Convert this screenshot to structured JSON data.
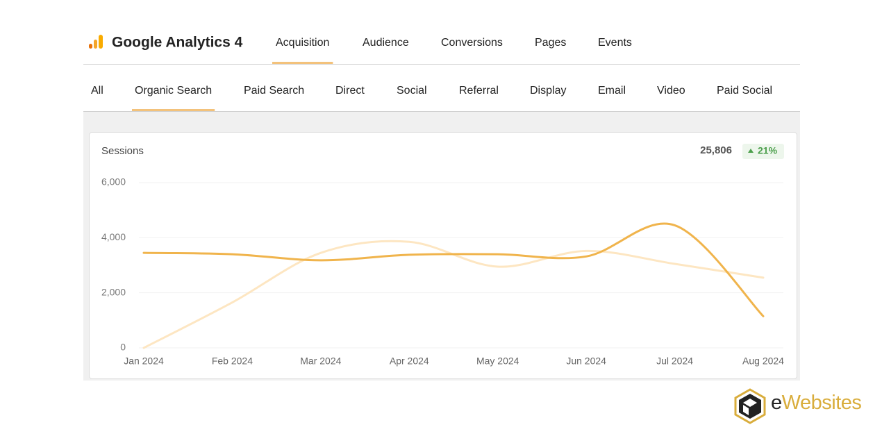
{
  "header": {
    "title": "Google Analytics 4",
    "tabs": [
      "Acquisition",
      "Audience",
      "Conversions",
      "Pages",
      "Events"
    ],
    "active_tab": 0
  },
  "channels": {
    "tabs": [
      "All",
      "Organic Search",
      "Paid Search",
      "Direct",
      "Social",
      "Referral",
      "Display",
      "Email",
      "Video",
      "Paid Social"
    ],
    "active_tab": 1
  },
  "card": {
    "total": "25,806",
    "change": "21%"
  },
  "chart_data": {
    "type": "line",
    "title": "Sessions",
    "categories": [
      "Jan 2024",
      "Feb 2024",
      "Mar 2024",
      "Apr 2024",
      "May 2024",
      "Jun 2024",
      "Jul 2024",
      "Aug 2024"
    ],
    "series": [
      {
        "color": "#fde6c2",
        "values": [
          0,
          1650,
          3450,
          3850,
          2950,
          3520,
          3050,
          2550
        ]
      },
      {
        "color": "#f0b44c",
        "values": [
          3450,
          3400,
          3180,
          3380,
          3400,
          3320,
          4450,
          1150
        ]
      }
    ],
    "ylim": [
      0,
      6000
    ],
    "yticks": [
      0,
      {
        "value": 2000,
        "label": "2,000"
      },
      {
        "value": 4000,
        "label": "4,000"
      },
      {
        "value": 6000,
        "label": "6,000"
      }
    ],
    "grid": true
  },
  "logo": {
    "text": "eWebsites"
  }
}
